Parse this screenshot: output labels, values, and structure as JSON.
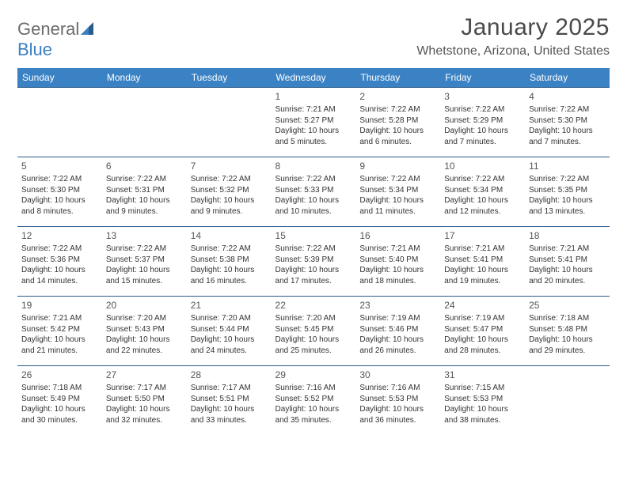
{
  "logo": {
    "text_gray": "General",
    "text_blue": "Blue"
  },
  "title": "January 2025",
  "location": "Whetstone, Arizona, United States",
  "colors": {
    "header_bg": "#3b82c4",
    "header_text": "#ffffff",
    "row_border": "#2a5a8a",
    "body_text": "#333333",
    "daynum_text": "#555555",
    "logo_gray": "#6b6b6b",
    "logo_blue": "#3b7fc4",
    "background": "#ffffff"
  },
  "day_names": [
    "Sunday",
    "Monday",
    "Tuesday",
    "Wednesday",
    "Thursday",
    "Friday",
    "Saturday"
  ],
  "weeks": [
    [
      {
        "n": "",
        "sr": "",
        "ss": "",
        "dl": ""
      },
      {
        "n": "",
        "sr": "",
        "ss": "",
        "dl": ""
      },
      {
        "n": "",
        "sr": "",
        "ss": "",
        "dl": ""
      },
      {
        "n": "1",
        "sr": "Sunrise: 7:21 AM",
        "ss": "Sunset: 5:27 PM",
        "dl": "Daylight: 10 hours and 5 minutes."
      },
      {
        "n": "2",
        "sr": "Sunrise: 7:22 AM",
        "ss": "Sunset: 5:28 PM",
        "dl": "Daylight: 10 hours and 6 minutes."
      },
      {
        "n": "3",
        "sr": "Sunrise: 7:22 AM",
        "ss": "Sunset: 5:29 PM",
        "dl": "Daylight: 10 hours and 7 minutes."
      },
      {
        "n": "4",
        "sr": "Sunrise: 7:22 AM",
        "ss": "Sunset: 5:30 PM",
        "dl": "Daylight: 10 hours and 7 minutes."
      }
    ],
    [
      {
        "n": "5",
        "sr": "Sunrise: 7:22 AM",
        "ss": "Sunset: 5:30 PM",
        "dl": "Daylight: 10 hours and 8 minutes."
      },
      {
        "n": "6",
        "sr": "Sunrise: 7:22 AM",
        "ss": "Sunset: 5:31 PM",
        "dl": "Daylight: 10 hours and 9 minutes."
      },
      {
        "n": "7",
        "sr": "Sunrise: 7:22 AM",
        "ss": "Sunset: 5:32 PM",
        "dl": "Daylight: 10 hours and 9 minutes."
      },
      {
        "n": "8",
        "sr": "Sunrise: 7:22 AM",
        "ss": "Sunset: 5:33 PM",
        "dl": "Daylight: 10 hours and 10 minutes."
      },
      {
        "n": "9",
        "sr": "Sunrise: 7:22 AM",
        "ss": "Sunset: 5:34 PM",
        "dl": "Daylight: 10 hours and 11 minutes."
      },
      {
        "n": "10",
        "sr": "Sunrise: 7:22 AM",
        "ss": "Sunset: 5:34 PM",
        "dl": "Daylight: 10 hours and 12 minutes."
      },
      {
        "n": "11",
        "sr": "Sunrise: 7:22 AM",
        "ss": "Sunset: 5:35 PM",
        "dl": "Daylight: 10 hours and 13 minutes."
      }
    ],
    [
      {
        "n": "12",
        "sr": "Sunrise: 7:22 AM",
        "ss": "Sunset: 5:36 PM",
        "dl": "Daylight: 10 hours and 14 minutes."
      },
      {
        "n": "13",
        "sr": "Sunrise: 7:22 AM",
        "ss": "Sunset: 5:37 PM",
        "dl": "Daylight: 10 hours and 15 minutes."
      },
      {
        "n": "14",
        "sr": "Sunrise: 7:22 AM",
        "ss": "Sunset: 5:38 PM",
        "dl": "Daylight: 10 hours and 16 minutes."
      },
      {
        "n": "15",
        "sr": "Sunrise: 7:22 AM",
        "ss": "Sunset: 5:39 PM",
        "dl": "Daylight: 10 hours and 17 minutes."
      },
      {
        "n": "16",
        "sr": "Sunrise: 7:21 AM",
        "ss": "Sunset: 5:40 PM",
        "dl": "Daylight: 10 hours and 18 minutes."
      },
      {
        "n": "17",
        "sr": "Sunrise: 7:21 AM",
        "ss": "Sunset: 5:41 PM",
        "dl": "Daylight: 10 hours and 19 minutes."
      },
      {
        "n": "18",
        "sr": "Sunrise: 7:21 AM",
        "ss": "Sunset: 5:41 PM",
        "dl": "Daylight: 10 hours and 20 minutes."
      }
    ],
    [
      {
        "n": "19",
        "sr": "Sunrise: 7:21 AM",
        "ss": "Sunset: 5:42 PM",
        "dl": "Daylight: 10 hours and 21 minutes."
      },
      {
        "n": "20",
        "sr": "Sunrise: 7:20 AM",
        "ss": "Sunset: 5:43 PM",
        "dl": "Daylight: 10 hours and 22 minutes."
      },
      {
        "n": "21",
        "sr": "Sunrise: 7:20 AM",
        "ss": "Sunset: 5:44 PM",
        "dl": "Daylight: 10 hours and 24 minutes."
      },
      {
        "n": "22",
        "sr": "Sunrise: 7:20 AM",
        "ss": "Sunset: 5:45 PM",
        "dl": "Daylight: 10 hours and 25 minutes."
      },
      {
        "n": "23",
        "sr": "Sunrise: 7:19 AM",
        "ss": "Sunset: 5:46 PM",
        "dl": "Daylight: 10 hours and 26 minutes."
      },
      {
        "n": "24",
        "sr": "Sunrise: 7:19 AM",
        "ss": "Sunset: 5:47 PM",
        "dl": "Daylight: 10 hours and 28 minutes."
      },
      {
        "n": "25",
        "sr": "Sunrise: 7:18 AM",
        "ss": "Sunset: 5:48 PM",
        "dl": "Daylight: 10 hours and 29 minutes."
      }
    ],
    [
      {
        "n": "26",
        "sr": "Sunrise: 7:18 AM",
        "ss": "Sunset: 5:49 PM",
        "dl": "Daylight: 10 hours and 30 minutes."
      },
      {
        "n": "27",
        "sr": "Sunrise: 7:17 AM",
        "ss": "Sunset: 5:50 PM",
        "dl": "Daylight: 10 hours and 32 minutes."
      },
      {
        "n": "28",
        "sr": "Sunrise: 7:17 AM",
        "ss": "Sunset: 5:51 PM",
        "dl": "Daylight: 10 hours and 33 minutes."
      },
      {
        "n": "29",
        "sr": "Sunrise: 7:16 AM",
        "ss": "Sunset: 5:52 PM",
        "dl": "Daylight: 10 hours and 35 minutes."
      },
      {
        "n": "30",
        "sr": "Sunrise: 7:16 AM",
        "ss": "Sunset: 5:53 PM",
        "dl": "Daylight: 10 hours and 36 minutes."
      },
      {
        "n": "31",
        "sr": "Sunrise: 7:15 AM",
        "ss": "Sunset: 5:53 PM",
        "dl": "Daylight: 10 hours and 38 minutes."
      },
      {
        "n": "",
        "sr": "",
        "ss": "",
        "dl": ""
      }
    ]
  ]
}
